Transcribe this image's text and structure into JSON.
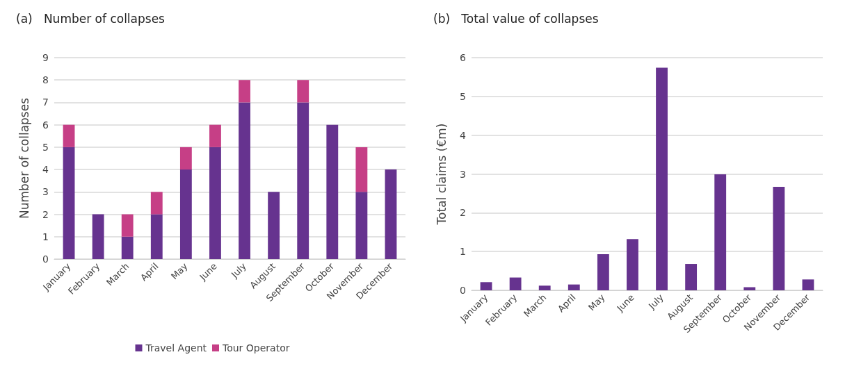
{
  "chart_data": [
    {
      "type": "bar",
      "title": "(a)   Number of collapses",
      "ylabel": "Number of collapses",
      "categories": [
        "January",
        "February",
        "March",
        "April",
        "May",
        "June",
        "July",
        "August",
        "September",
        "October",
        "November",
        "December"
      ],
      "stacked": true,
      "ylim": [
        0,
        9
      ],
      "yticks": [
        0,
        1,
        2,
        3,
        4,
        5,
        6,
        7,
        8,
        9
      ],
      "grid": "y",
      "legend": "bottom",
      "series": [
        {
          "name": "Travel Agent",
          "color": "#66338f",
          "values": [
            5,
            2,
            1,
            2,
            4,
            5,
            7,
            3,
            7,
            6,
            3,
            4
          ]
        },
        {
          "name": "Tour Operator",
          "color": "#c63f86",
          "values": [
            1,
            0,
            1,
            1,
            1,
            1,
            1,
            0,
            1,
            0,
            2,
            0
          ]
        }
      ]
    },
    {
      "type": "bar",
      "title": "(b)   Total value of collapses",
      "ylabel": "Total claims (€m)",
      "categories": [
        "January",
        "February",
        "March",
        "April",
        "May",
        "June",
        "July",
        "August",
        "September",
        "October",
        "November",
        "December"
      ],
      "ylim": [
        0,
        6
      ],
      "yticks": [
        0,
        1,
        2,
        3,
        4,
        5,
        6
      ],
      "grid": "y",
      "series": [
        {
          "color": "#66338f",
          "values": [
            0.21,
            0.33,
            0.12,
            0.15,
            0.93,
            1.32,
            5.74,
            0.68,
            2.99,
            0.08,
            2.67,
            0.28
          ]
        }
      ]
    }
  ]
}
